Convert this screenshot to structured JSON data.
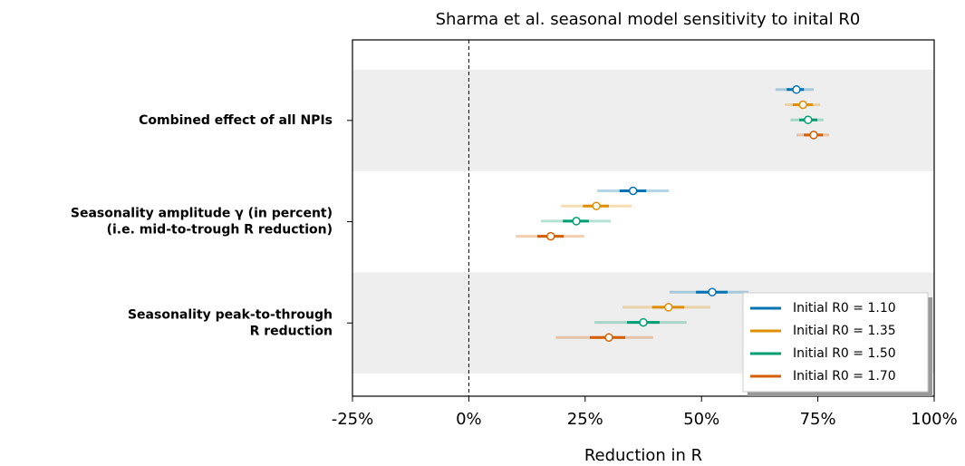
{
  "chart_data": {
    "type": "forest",
    "title": "Sharma et al. seasonal model sensitivity to inital R0",
    "xlabel": "Reduction in R",
    "categories": [
      [
        "Combined effect of all NPIs"
      ],
      [
        "Seasonality amplitude γ (in percent)",
        "(i.e. mid-to-trough R reduction)"
      ],
      [
        "Seasonality peak-to-through",
        "R reduction"
      ]
    ],
    "xlim": [
      -25,
      100
    ],
    "xticks": [
      {
        "value": -25,
        "label": "-25%"
      },
      {
        "value": 0,
        "label": "0%"
      },
      {
        "value": 25,
        "label": "25%"
      },
      {
        "value": 50,
        "label": "50%"
      },
      {
        "value": 75,
        "label": "75%"
      },
      {
        "value": 100,
        "label": "100%"
      }
    ],
    "reference_line": 0,
    "legend": "lower right",
    "series": [
      {
        "name": "Initial R0 = 1.10",
        "color": "#0173b2",
        "values": [
          70.4,
          35.3,
          52.3
        ],
        "inner": [
          [
            68.3,
            72
          ],
          [
            32.4,
            38.1
          ],
          [
            48.8,
            55.6
          ]
        ],
        "outer": [
          [
            65.9,
            74.1
          ],
          [
            27.6,
            43
          ],
          [
            43.1,
            60.1
          ]
        ]
      },
      {
        "name": "Initial R0 = 1.35",
        "color": "#de8f05",
        "values": [
          71.8,
          27.4,
          42.9
        ],
        "inner": [
          [
            69.6,
            73.9
          ],
          [
            24.5,
            30.1
          ],
          [
            39.4,
            46.3
          ]
        ],
        "outer": [
          [
            67.9,
            75.5
          ],
          [
            19.8,
            35
          ],
          [
            33,
            51.9
          ]
        ]
      },
      {
        "name": "Initial R0 = 1.50",
        "color": "#029e73",
        "values": [
          72.9,
          23.1,
          37.5
        ],
        "inner": [
          [
            71,
            74.9
          ],
          [
            20.2,
            25.8
          ],
          [
            34,
            41
          ]
        ],
        "outer": [
          [
            69.1,
            76.2
          ],
          [
            15.5,
            30.5
          ],
          [
            27,
            46.8
          ]
        ]
      },
      {
        "name": "Initial R0 = 1.70",
        "color": "#d55e00",
        "values": [
          74.1,
          17.6,
          30.1
        ],
        "inner": [
          [
            72,
            76.1
          ],
          [
            14.7,
            20.4
          ],
          [
            26,
            33.6
          ]
        ],
        "outer": [
          [
            70.4,
            77.4
          ],
          [
            10.1,
            24.8
          ],
          [
            18.7,
            39.6
          ]
        ]
      }
    ]
  }
}
